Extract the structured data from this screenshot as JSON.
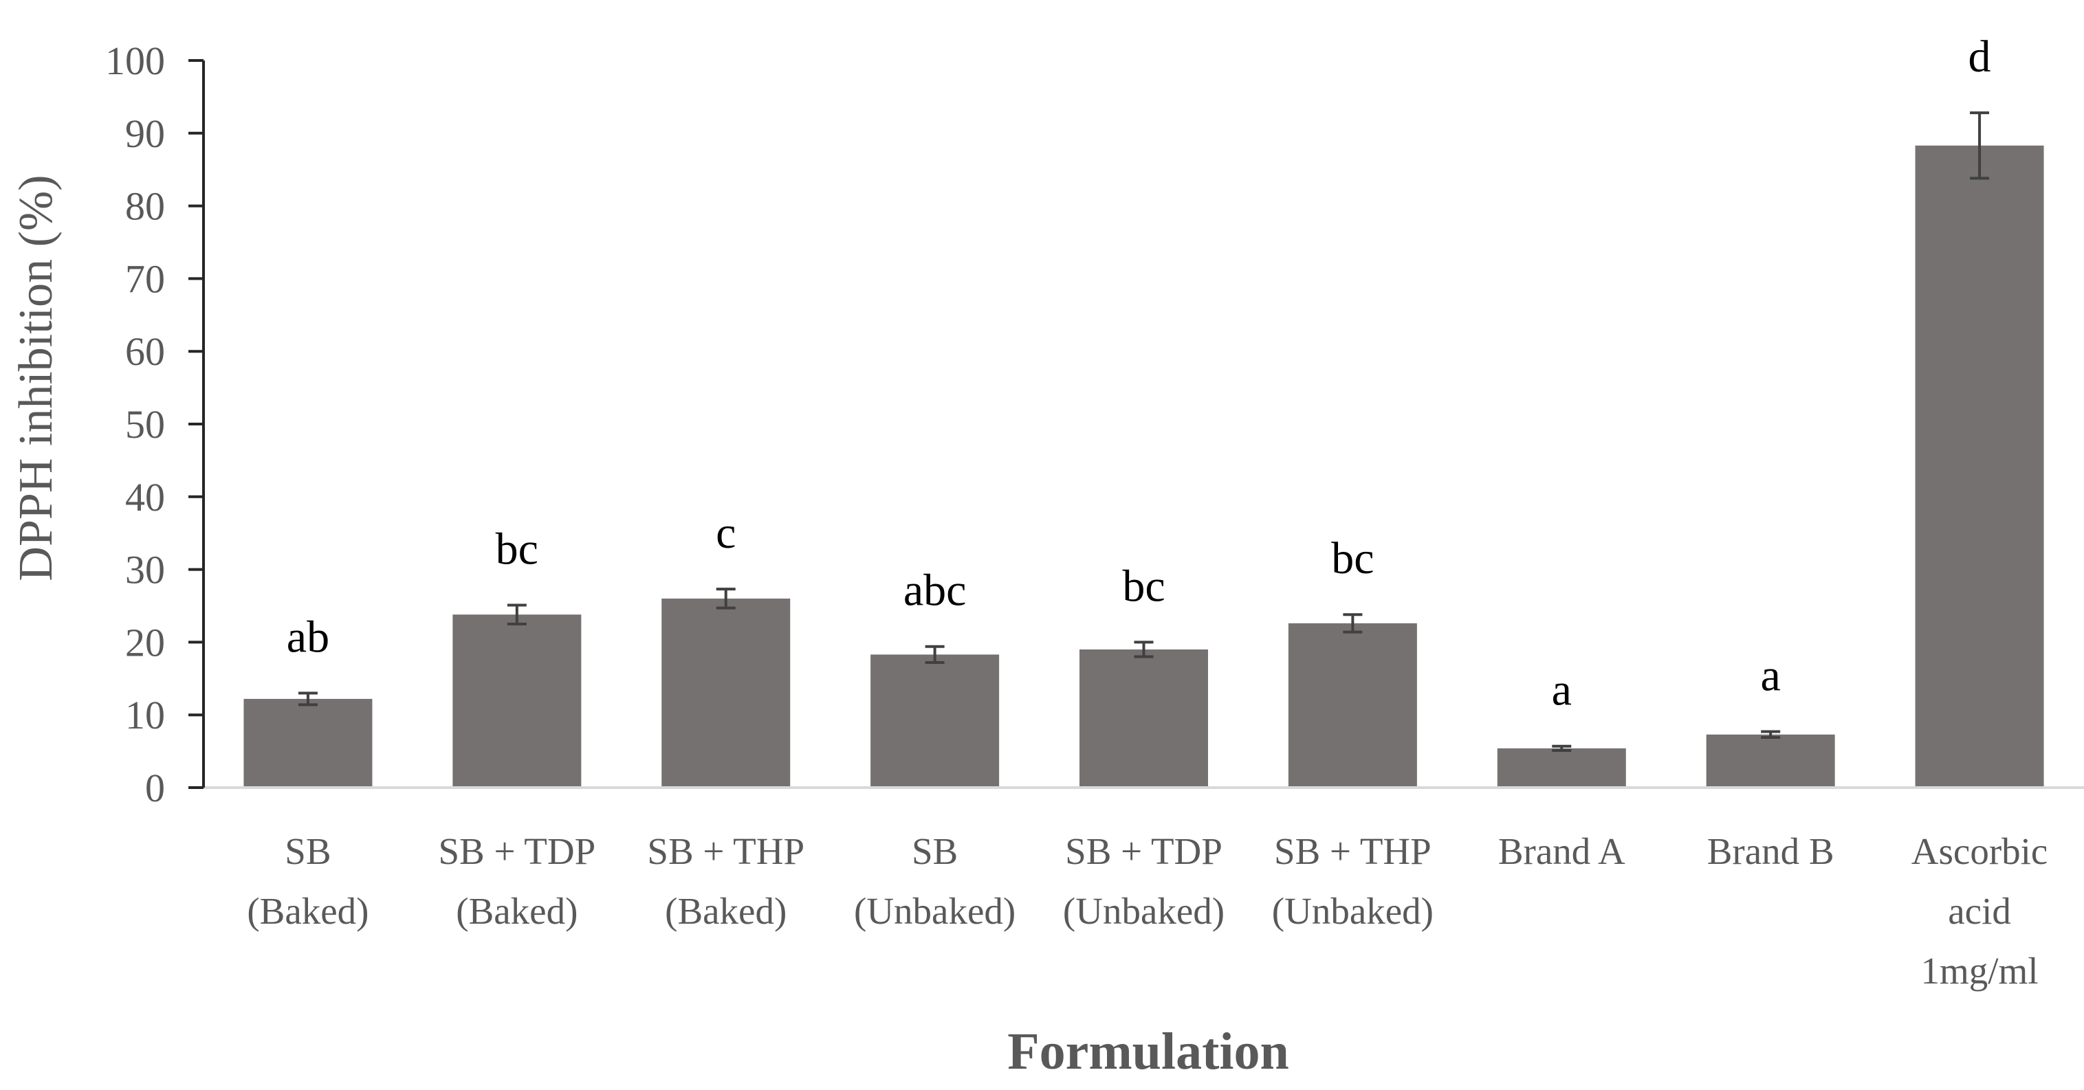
{
  "chart_data": {
    "type": "bar",
    "title": "",
    "xlabel": "Formulation",
    "ylabel": "DPPH inhibition (%)",
    "ylim": [
      0,
      100
    ],
    "yticks": [
      0,
      10,
      20,
      30,
      40,
      50,
      60,
      70,
      80,
      90,
      100
    ],
    "grid": false,
    "categories": [
      [
        "SB",
        "(Baked)"
      ],
      [
        "SB + TDP",
        "(Baked)"
      ],
      [
        "SB + THP",
        "(Baked)"
      ],
      [
        "SB",
        "(Unbaked)"
      ],
      [
        "SB + TDP",
        "(Unbaked)"
      ],
      [
        "SB + THP",
        "(Unbaked)"
      ],
      [
        "Brand A"
      ],
      [
        "Brand B"
      ],
      [
        "Ascorbic",
        "acid",
        "1mg/ml"
      ]
    ],
    "values": [
      12.2,
      23.8,
      26.0,
      18.3,
      19.0,
      22.6,
      5.4,
      7.3,
      88.3
    ],
    "errors": [
      0.8,
      1.3,
      1.3,
      1.1,
      1.0,
      1.2,
      0.3,
      0.4,
      4.5
    ],
    "significance_letters": [
      "ab",
      "bc",
      "c",
      "abc",
      "bc",
      "bc",
      "a",
      "a",
      "d"
    ],
    "colors": {
      "bar": "#767171",
      "axis": "#262626",
      "baseline": "#d9d9d9",
      "error_bar": "#404040"
    }
  }
}
